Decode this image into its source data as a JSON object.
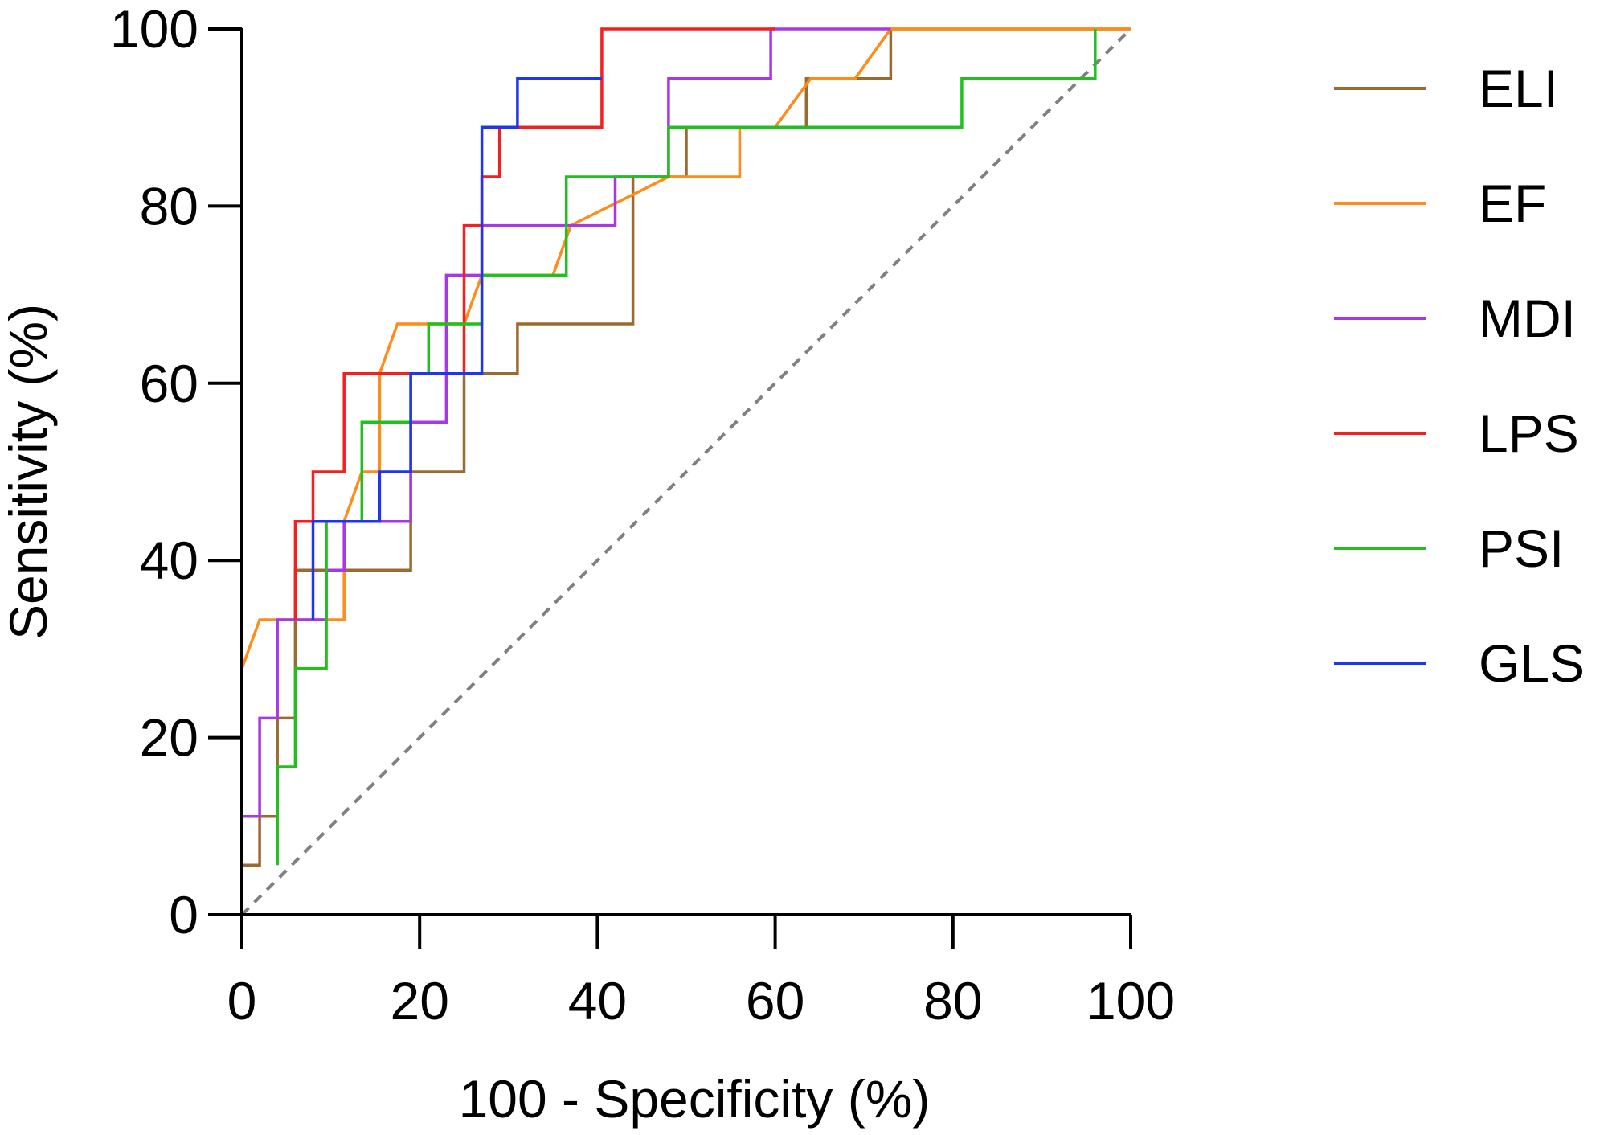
{
  "chart_data": {
    "type": "line",
    "title": "",
    "xlabel": "100 - Specificity (%)",
    "ylabel": "Sensitivity (%)",
    "xlim": [
      0,
      100
    ],
    "ylim": [
      0,
      100
    ],
    "xticks": [
      "0",
      "20",
      "40",
      "60",
      "80",
      "100"
    ],
    "yticks": [
      "0",
      "20",
      "40",
      "60",
      "80",
      "100"
    ],
    "grid": false,
    "legend_position": "right",
    "reference_line": {
      "style": "dashed",
      "color": "#808080",
      "x": [
        0,
        100
      ],
      "y": [
        0,
        100
      ]
    },
    "series": [
      {
        "name": "ELI",
        "color": "#9b6a2f",
        "x": [
          0,
          0,
          2,
          2,
          4,
          4,
          6,
          6,
          19,
          19,
          25,
          25,
          31,
          31,
          44,
          44,
          50,
          50,
          63.5,
          63.5,
          73,
          73,
          100
        ],
        "y": [
          0,
          5.6,
          5.6,
          11.1,
          11.1,
          22.2,
          22.2,
          38.9,
          38.9,
          50,
          50,
          61.1,
          61.1,
          66.7,
          66.7,
          83.3,
          83.3,
          88.9,
          88.9,
          94.4,
          94.4,
          100,
          100
        ]
      },
      {
        "name": "EF",
        "color": "#ff8c1a",
        "x": [
          0,
          0,
          2,
          11.5,
          11.5,
          13.5,
          15.5,
          15.5,
          17.5,
          25,
          27,
          35,
          37,
          48,
          56,
          56,
          60,
          64,
          69,
          73,
          100
        ],
        "y": [
          5.6,
          27.8,
          33.3,
          33.3,
          44.4,
          50,
          50,
          61.1,
          66.7,
          66.7,
          72.2,
          72.2,
          77.8,
          83.3,
          83.3,
          88.9,
          88.9,
          94.4,
          94.4,
          100,
          100
        ]
      },
      {
        "name": "MDI",
        "color": "#a638e8",
        "x": [
          0,
          0,
          2,
          2,
          4,
          4,
          9.5,
          9.5,
          11.5,
          11.5,
          19,
          19,
          23,
          23,
          27,
          27,
          42,
          42,
          48,
          48,
          59.5,
          59.5,
          73
        ],
        "y": [
          5.6,
          11.1,
          11.1,
          22.2,
          22.2,
          33.3,
          33.3,
          38.9,
          38.9,
          44.4,
          44.4,
          55.6,
          55.6,
          72.2,
          72.2,
          77.8,
          77.8,
          83.3,
          83.3,
          94.4,
          94.4,
          100,
          100
        ]
      },
      {
        "name": "LPS",
        "color": "#f41f1f",
        "x": [
          6,
          6,
          8,
          8,
          11.5,
          11.5,
          25,
          25,
          27,
          27,
          29,
          29,
          40.5,
          40.5,
          60
        ],
        "y": [
          33.3,
          44.4,
          44.4,
          50,
          50,
          61.1,
          61.1,
          77.8,
          77.8,
          83.3,
          83.3,
          88.9,
          88.9,
          100,
          100
        ]
      },
      {
        "name": "PSI",
        "color": "#22c01f",
        "x": [
          4,
          4,
          6,
          6,
          9.5,
          9.5,
          13.5,
          13.5,
          19,
          19,
          21,
          21,
          25,
          25,
          27,
          27,
          36.5,
          36.5,
          48,
          48,
          81,
          81,
          96,
          96
        ],
        "y": [
          5.6,
          16.7,
          16.7,
          27.8,
          27.8,
          44.4,
          44.4,
          55.6,
          55.6,
          61.1,
          61.1,
          66.7,
          66.7,
          66.7,
          66.7,
          72.2,
          72.2,
          83.3,
          83.3,
          88.9,
          88.9,
          94.4,
          94.4,
          100
        ]
      },
      {
        "name": "GLS",
        "color": "#1f35f0",
        "x": [
          8,
          8,
          15.5,
          15.5,
          19,
          19,
          27,
          27,
          31,
          31,
          40.5
        ],
        "y": [
          33.3,
          44.4,
          44.4,
          50,
          50,
          61.1,
          61.1,
          88.9,
          88.9,
          94.4,
          94.4
        ]
      }
    ]
  }
}
